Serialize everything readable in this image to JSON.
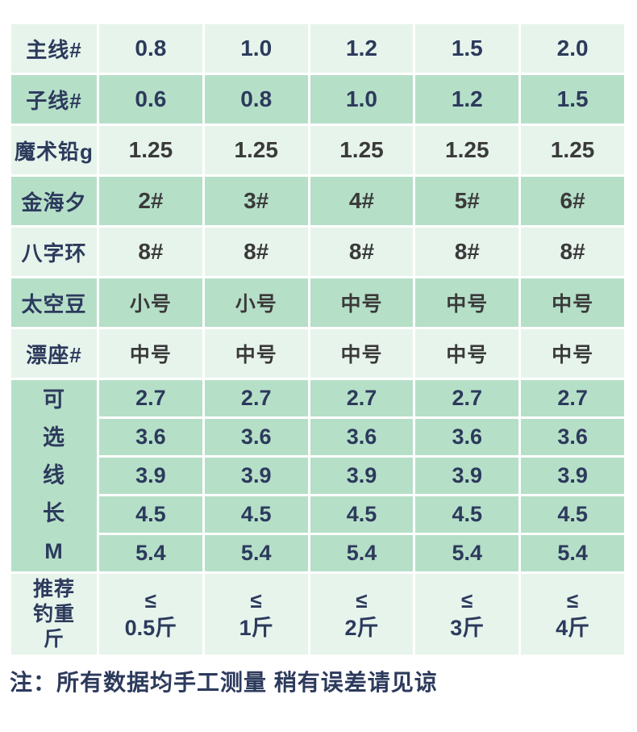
{
  "colors": {
    "light_row_bg": "#e7f4ec",
    "medium_row_bg": "#b6dfc8",
    "navy_text": "#2c3a5c",
    "dark_text": "#3a3a3a",
    "page_bg": "#ffffff"
  },
  "table": {
    "rows": [
      {
        "label": "主线#",
        "tone": "light",
        "value_style": "navy",
        "values": [
          "0.8",
          "1.0",
          "1.2",
          "1.5",
          "2.0"
        ]
      },
      {
        "label": "子线#",
        "tone": "medium",
        "value_style": "navy",
        "values": [
          "0.6",
          "0.8",
          "1.0",
          "1.2",
          "1.5"
        ]
      },
      {
        "label": "魔术铅g",
        "tone": "light",
        "value_style": "dark",
        "values": [
          "1.25",
          "1.25",
          "1.25",
          "1.25",
          "1.25"
        ]
      },
      {
        "label": "金海夕",
        "tone": "medium",
        "value_style": "dark",
        "values": [
          "2#",
          "3#",
          "4#",
          "5#",
          "6#"
        ]
      },
      {
        "label": "八字环",
        "tone": "light",
        "value_style": "dark",
        "values": [
          "8#",
          "8#",
          "8#",
          "8#",
          "8#"
        ]
      },
      {
        "label": "太空豆",
        "tone": "medium",
        "value_style": "dark-cjk",
        "values": [
          "小号",
          "小号",
          "中号",
          "中号",
          "中号"
        ]
      },
      {
        "label": "漂座#",
        "tone": "light",
        "value_style": "dark-cjk",
        "values": [
          "中号",
          "中号",
          "中号",
          "中号",
          "中号"
        ]
      }
    ],
    "length_section": {
      "label_chars": [
        "可",
        "选",
        "线",
        "长",
        "M"
      ],
      "rows": [
        [
          "2.7",
          "2.7",
          "2.7",
          "2.7",
          "2.7"
        ],
        [
          "3.6",
          "3.6",
          "3.6",
          "3.6",
          "3.6"
        ],
        [
          "3.9",
          "3.9",
          "3.9",
          "3.9",
          "3.9"
        ],
        [
          "4.5",
          "4.5",
          "4.5",
          "4.5",
          "4.5"
        ],
        [
          "5.4",
          "5.4",
          "5.4",
          "5.4",
          "5.4"
        ]
      ]
    },
    "weight_row": {
      "label_lines": [
        "推荐",
        "钓重",
        "斤"
      ],
      "values": [
        {
          "symbol": "≤",
          "text": "0.5斤"
        },
        {
          "symbol": "≤",
          "text": "1斤"
        },
        {
          "symbol": "≤",
          "text": "2斤"
        },
        {
          "symbol": "≤",
          "text": "3斤"
        },
        {
          "symbol": "≤",
          "text": "4斤"
        }
      ]
    }
  },
  "note": "注：所有数据均手工测量 稍有误差请见谅"
}
